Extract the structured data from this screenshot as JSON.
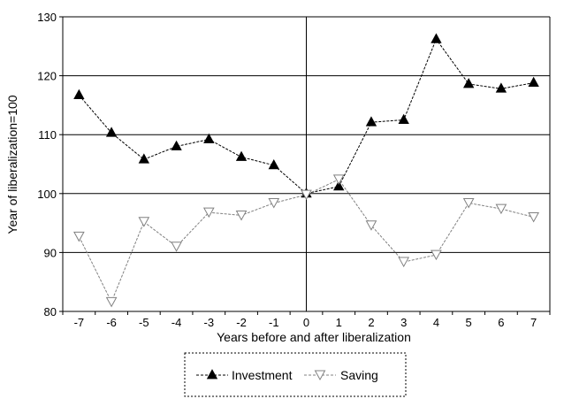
{
  "chart_data": {
    "type": "line",
    "title": "",
    "xlabel": "Years before and after liberalization",
    "ylabel": "Year of liberalization=100",
    "categories": [
      "-7",
      "-6",
      "-5",
      "-4",
      "-3",
      "-2",
      "-1",
      "0",
      "1",
      "2",
      "3",
      "4",
      "5",
      "6",
      "7"
    ],
    "ylim": [
      80,
      130
    ],
    "yticks": [
      80,
      90,
      100,
      110,
      120,
      130
    ],
    "grid": "horizontal",
    "legend_position": "bottom",
    "series": [
      {
        "name": "Investment",
        "marker": "filled-triangle-up",
        "color": "#000000",
        "values": [
          116.7,
          110.3,
          105.8,
          108.0,
          109.2,
          106.2,
          104.8,
          100.0,
          101.2,
          112.1,
          112.5,
          126.2,
          118.6,
          117.8,
          118.8
        ]
      },
      {
        "name": "Saving",
        "marker": "open-triangle-down",
        "color": "#808080",
        "values": [
          92.7,
          81.6,
          95.2,
          91.0,
          96.8,
          96.3,
          98.4,
          99.8,
          102.4,
          94.6,
          88.4,
          89.6,
          98.4,
          97.4,
          96.0
        ]
      }
    ]
  }
}
